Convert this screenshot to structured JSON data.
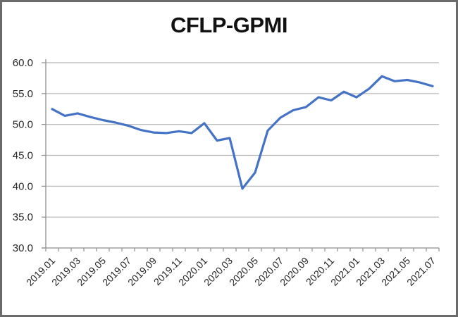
{
  "window": {
    "frame_color": "#6a6a6a",
    "background": "#ffffff"
  },
  "chart_data": {
    "type": "line",
    "title": "CFLP-GPMI",
    "xlabel": "",
    "ylabel": "",
    "legend": "none",
    "grid": true,
    "ylim": [
      30,
      60
    ],
    "ytick_interval": 5,
    "ytick_decimals": 1,
    "x_label_every": 2,
    "x": [
      "2019.01",
      "2019.02",
      "2019.03",
      "2019.04",
      "2019.05",
      "2019.06",
      "2019.07",
      "2019.08",
      "2019.09",
      "2019.10",
      "2019.11",
      "2019.12",
      "2020.01",
      "2020.02",
      "2020.03",
      "2020.04",
      "2020.05",
      "2020.06",
      "2020.07",
      "2020.08",
      "2020.09",
      "2020.10",
      "2020.11",
      "2020.12",
      "2021.01",
      "2021.02",
      "2021.03",
      "2021.04",
      "2021.05",
      "2021.06",
      "2021.07"
    ],
    "values": [
      52.5,
      51.4,
      51.8,
      51.2,
      50.7,
      50.3,
      49.8,
      49.1,
      48.7,
      48.6,
      48.9,
      48.6,
      50.2,
      47.4,
      47.8,
      39.6,
      42.2,
      49.0,
      51.1,
      52.3,
      52.8,
      54.4,
      53.9,
      55.3,
      54.4,
      55.8,
      57.8,
      57.0,
      57.2,
      56.8,
      56.2
    ],
    "line_color": "#4472C4",
    "gridline_color": "#b5b5b5",
    "axis_color": "#8f8f8f",
    "label_color": "#262626",
    "title_color": "#111111"
  }
}
